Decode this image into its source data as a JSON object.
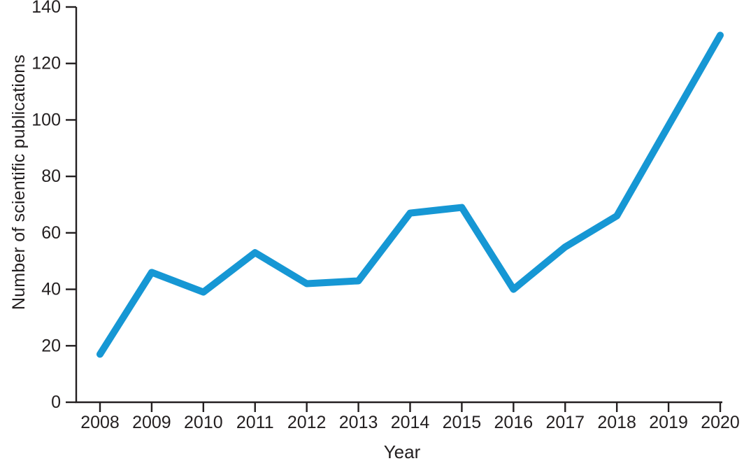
{
  "chart_data": {
    "type": "line",
    "title": "",
    "xlabel": "Year",
    "ylabel": "Number of scientific publications",
    "x": [
      2008,
      2009,
      2010,
      2011,
      2012,
      2013,
      2014,
      2015,
      2016,
      2017,
      2018,
      2019,
      2020
    ],
    "x_tick_labels": [
      "2008",
      "2009",
      "2010",
      "2011",
      "2012",
      "2013",
      "2014",
      "2015",
      "2016",
      "2017",
      "2018",
      "2019",
      "2020"
    ],
    "series": [
      {
        "name": "publications",
        "values": [
          17,
          46,
          39,
          53,
          42,
          43,
          67,
          69,
          40,
          55,
          66,
          98,
          130
        ]
      }
    ],
    "ylim": [
      0,
      140
    ],
    "y_ticks": [
      0,
      20,
      40,
      60,
      80,
      100,
      120,
      140
    ],
    "grid": false,
    "legend": null,
    "line_color": "#1697d4",
    "axis_color": "#231f20",
    "text_color": "#231f20",
    "background_color": "#ffffff"
  }
}
